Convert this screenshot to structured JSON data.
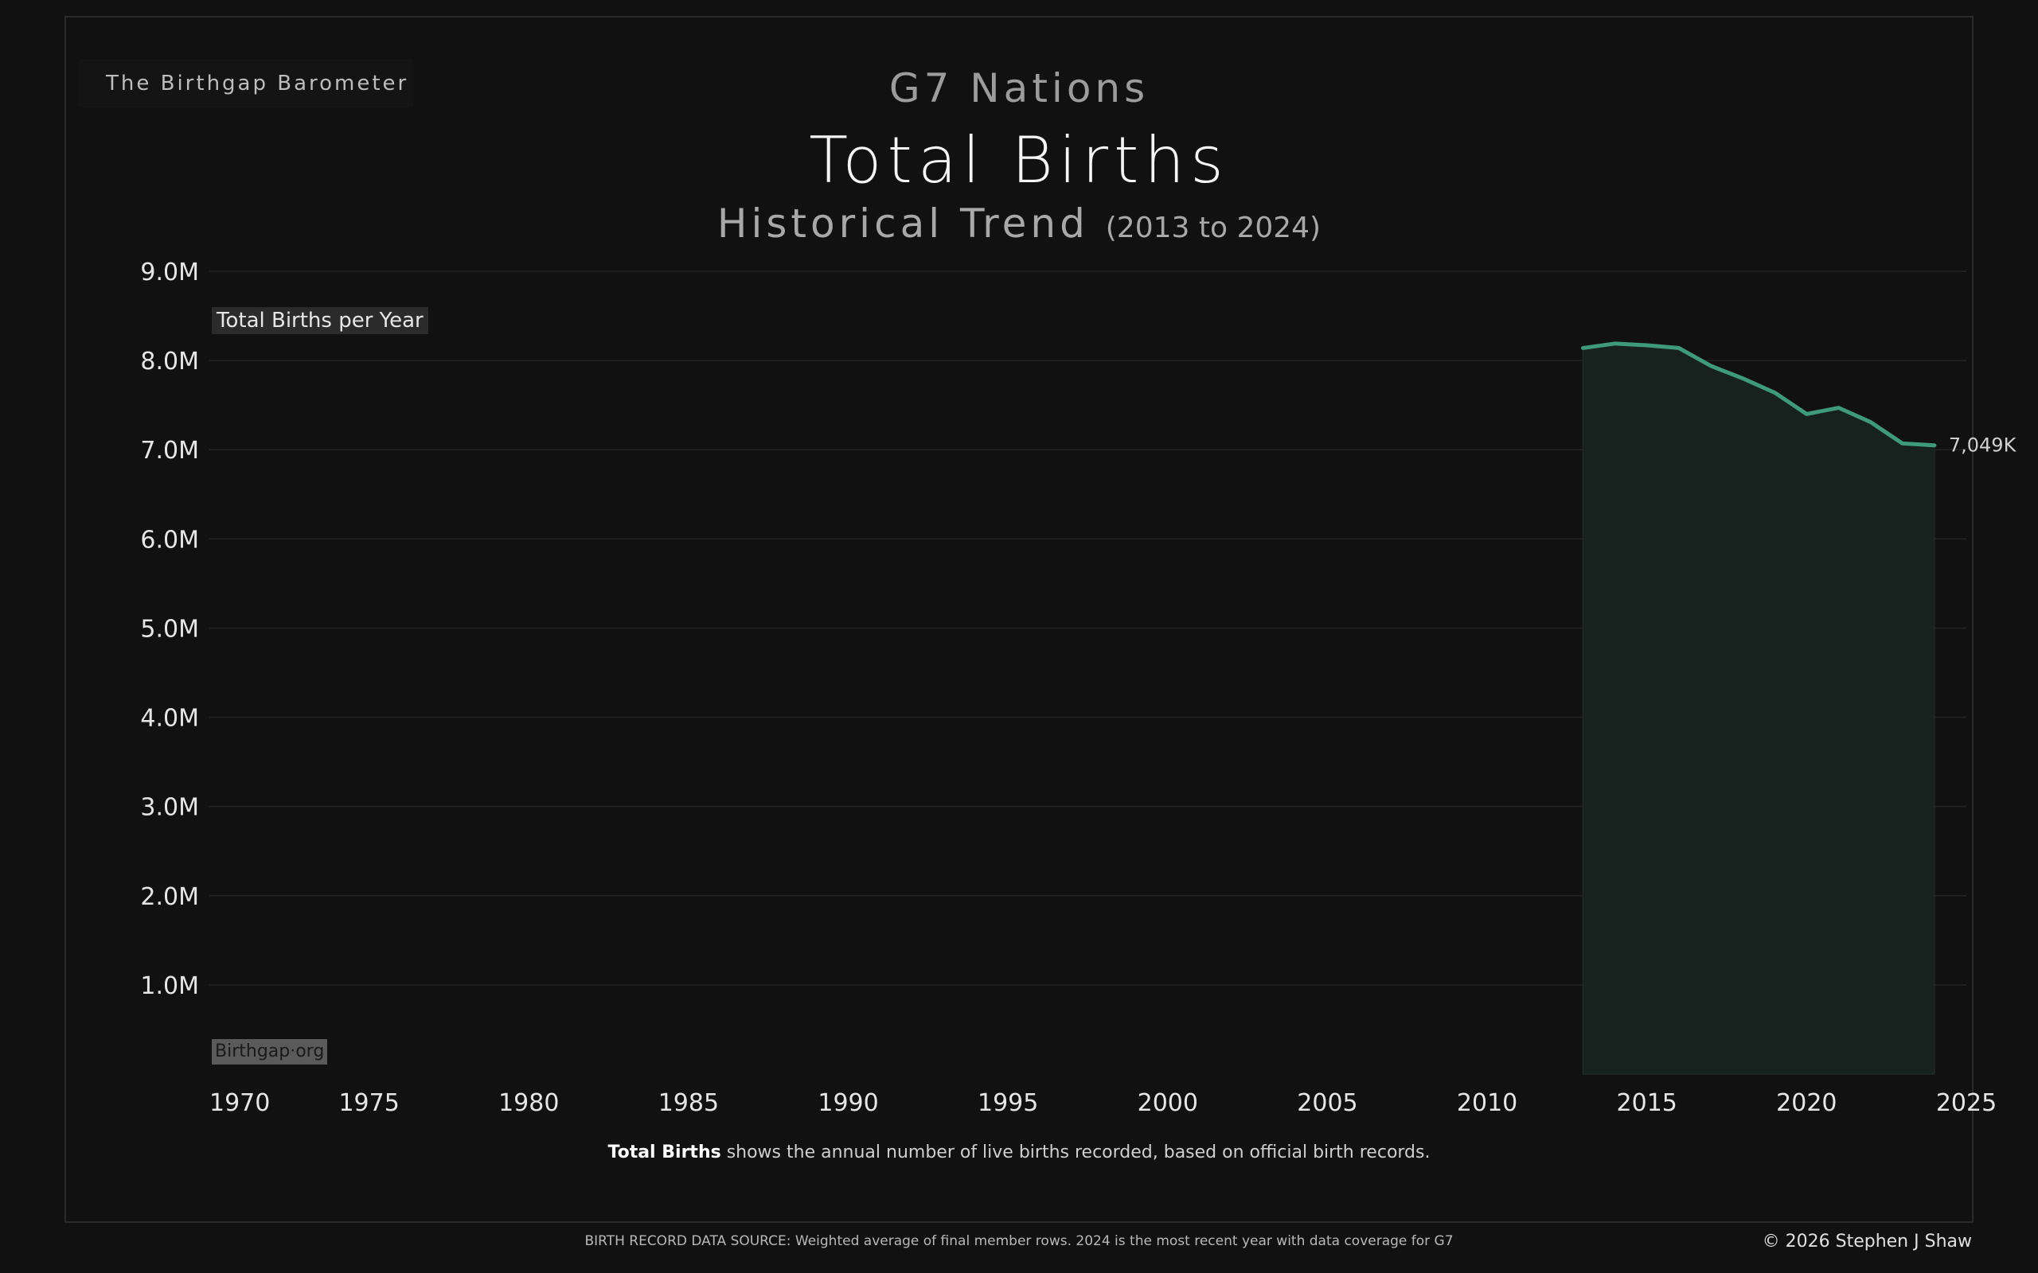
{
  "brand": "The Birthgap Barometer",
  "header": {
    "supertitle": "G7 Nations",
    "title": "Total Births",
    "subtitle": "Historical Trend",
    "subtitle_range": "(2013 to 2024)"
  },
  "chart_data": {
    "type": "area",
    "ylabel": "Total Births per Year",
    "xlim": [
      1970,
      2025
    ],
    "ylim": [
      0,
      9000000
    ],
    "x_ticks": [
      1970,
      1975,
      1980,
      1985,
      1990,
      1995,
      2000,
      2005,
      2010,
      2015,
      2020,
      2025
    ],
    "y_ticks": [
      1000000,
      2000000,
      3000000,
      4000000,
      5000000,
      6000000,
      7000000,
      8000000,
      9000000
    ],
    "y_tick_labels": [
      "1.0M",
      "2.0M",
      "3.0M",
      "4.0M",
      "5.0M",
      "6.0M",
      "7.0M",
      "8.0M",
      "9.0M"
    ],
    "grid": true,
    "series": [
      {
        "x": [
          2013,
          2014,
          2015,
          2016,
          2017,
          2018,
          2019,
          2020,
          2021,
          2022,
          2023,
          2024
        ],
        "values": [
          8140000,
          8190000,
          8170000,
          8140000,
          7940000,
          7800000,
          7640000,
          7400000,
          7470000,
          7310000,
          7070000,
          7049000
        ],
        "color": "#3f9a7c"
      }
    ],
    "end_label": "7,049K"
  },
  "watermark": "Birthgap·org",
  "footnote": {
    "bold": "Total Births",
    "text": " shows the annual number of live births recorded, based on official birth records."
  },
  "source": "BIRTH RECORD DATA SOURCE: Weighted average of final member rows. 2024 is the most recent year with data coverage for G7",
  "copyright": "© 2026 Stephen J Shaw"
}
